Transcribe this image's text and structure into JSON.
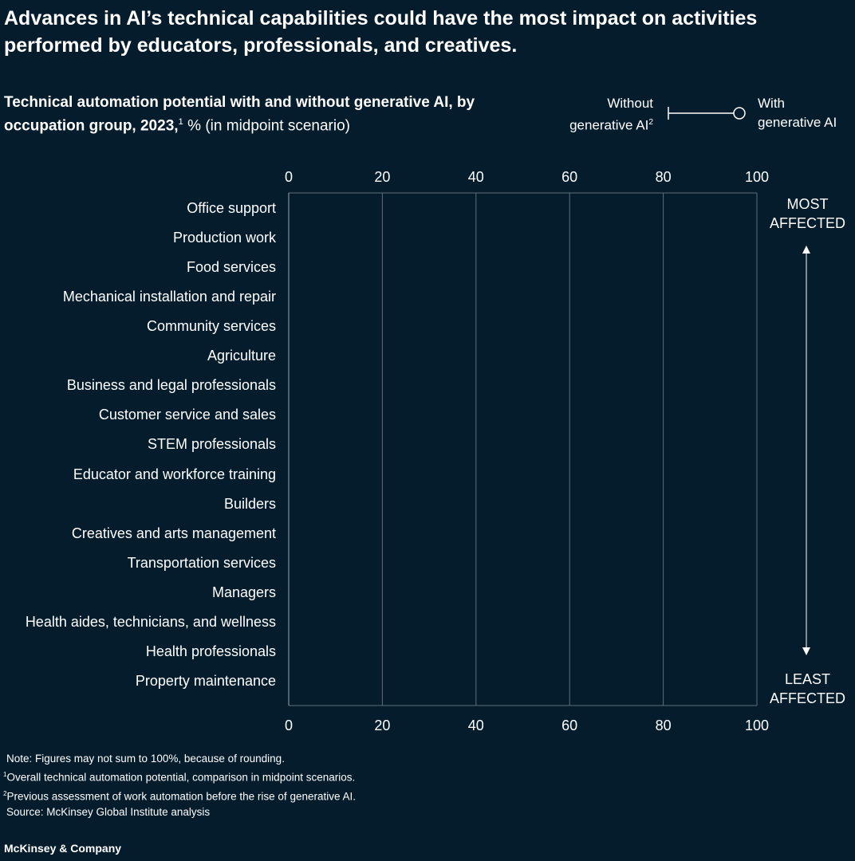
{
  "title": "Advances in AI’s technical capabilities could have the most impact on activities performed by educators, professionals, and creatives.",
  "subtitle": {
    "bold": "Technical automation potential with and without generative AI, by occupation group, 2023,",
    "sup": "1",
    "rest": " % (in midpoint scenario)"
  },
  "legend": {
    "without": "Without",
    "without2": "generative AI",
    "without_sup": "2",
    "with": "With",
    "with2": "generative AI"
  },
  "side": {
    "top1": "MOST",
    "top2": "AFFECTED",
    "bottom1": "LEAST",
    "bottom2": "AFFECTED"
  },
  "chart_data": {
    "type": "dumbbell",
    "categories": [
      "Office support",
      "Production work",
      "Food services",
      "Mechanical installation and repair",
      "Community services",
      "Agriculture",
      "Business and legal professionals",
      "Customer service and sales",
      "STEM professionals",
      "Educator and workforce training",
      "Builders",
      "Creatives and arts management",
      "Transportation services",
      "Managers",
      "Health aides, technicians, and wellness",
      "Health professionals",
      "Property maintenance"
    ],
    "xlim": [
      0,
      100
    ],
    "xticks": [
      "0",
      "20",
      "40",
      "60",
      "80",
      "100"
    ],
    "grid": true,
    "legend_position": "top-right",
    "colors": {
      "background": "#051c2c",
      "grid": "#5f6e7a",
      "text": "#ffffff"
    }
  },
  "notes": [
    "Note: Figures may not sum to 100%, because of rounding.",
    "Overall technical automation potential, comparison in midpoint scenarios.",
    "Previous assessment of work automation before the rise of generative AI.",
    "Source: McKinsey Global Institute analysis"
  ],
  "brand": "McKinsey & Company"
}
